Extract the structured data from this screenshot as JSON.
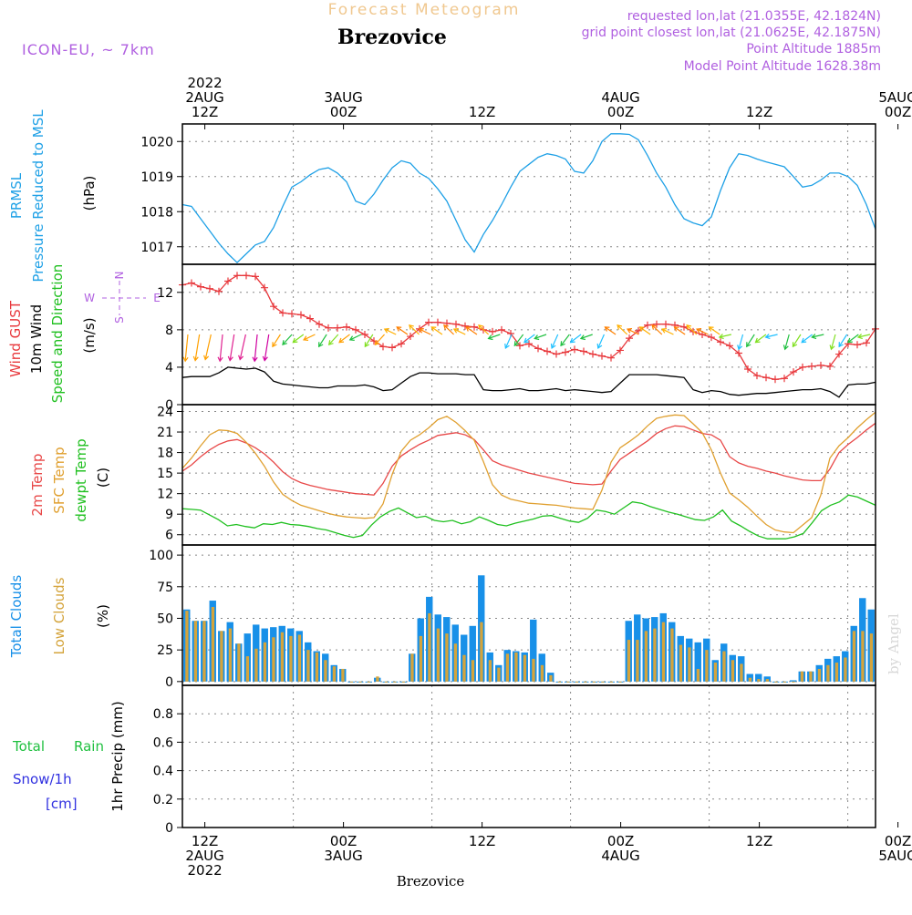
{
  "header": {
    "super_title": "Forecast Meteogram",
    "location": "Brezovice",
    "model": "ICON-EU, ~ 7km",
    "requested": "requested lon,lat (21.0355E, 42.1824N)",
    "grid_point": "grid point closest lon,lat (21.0625E, 42.1875N)",
    "point_altitude": "Point Altitude 1885m",
    "model_altitude": "Model Point Altitude 1628.38m",
    "footer_location": "Brezovice",
    "watermark": "by Angel"
  },
  "colors": {
    "pressure": "#1ea0e6",
    "gust": "#e8383c",
    "wind": "#000000",
    "t2m": "#e84848",
    "sfc": "#e0a030",
    "dewpt": "#20c020",
    "total_cloud": "#1890e8",
    "low_cloud": "#d4a43c",
    "rain": "#20c040",
    "snow": "#3030e0",
    "purple": "#b060e0",
    "super_title": "#f0c890"
  },
  "time_axis": {
    "top_labels": [
      {
        "t": -0.04,
        "lines": [
          "2022",
          "2AUG",
          "12Z"
        ]
      },
      {
        "t": 0.16,
        "lines": [
          "3AUG",
          "00Z"
        ]
      },
      {
        "t": 0.36,
        "lines": [
          "12Z"
        ]
      },
      {
        "t": 0.56,
        "lines": [
          "4AUG",
          "00Z"
        ]
      },
      {
        "t": 0.76,
        "lines": [
          "12Z"
        ]
      },
      {
        "t": 0.96,
        "lines": [
          "5AUG",
          "00Z"
        ]
      }
    ],
    "bottom_labels": [
      {
        "t": -0.04,
        "lines": [
          "12Z",
          "2AUG",
          "2022"
        ]
      },
      {
        "t": 0.16,
        "lines": [
          "00Z",
          "3AUG"
        ]
      },
      {
        "t": 0.36,
        "lines": [
          "12Z"
        ]
      },
      {
        "t": 0.56,
        "lines": [
          "00Z",
          "4AUG"
        ]
      },
      {
        "t": 0.76,
        "lines": [
          "12Z"
        ]
      },
      {
        "t": 0.96,
        "lines": [
          "00Z",
          "5AUG"
        ]
      }
    ],
    "vgrid_t": [
      -0.04,
      0.16,
      0.36,
      0.56,
      0.76,
      0.96
    ]
  },
  "chart_data": [
    {
      "type": "line",
      "panel": "pressure",
      "ylabels": [
        "PRMSL",
        "Pressure Reduced to MSL"
      ],
      "unit": "(hPa)",
      "ylim": [
        1016.5,
        1020.5
      ],
      "yticks": [
        1017,
        1018,
        1019,
        1020
      ],
      "series": [
        {
          "name": "PRMSL",
          "values": [
            1018.2,
            1018.15,
            1017.8,
            1017.45,
            1017.1,
            1016.8,
            1016.55,
            1016.8,
            1017.05,
            1017.15,
            1017.55,
            1018.15,
            1018.7,
            1018.85,
            1019.05,
            1019.2,
            1019.25,
            1019.1,
            1018.85,
            1018.3,
            1018.2,
            1018.5,
            1018.9,
            1019.25,
            1019.45,
            1019.38,
            1019.1,
            1018.95,
            1018.65,
            1018.3,
            1017.75,
            1017.2,
            1016.85,
            1017.35,
            1017.75,
            1018.2,
            1018.7,
            1019.15,
            1019.35,
            1019.55,
            1019.65,
            1019.6,
            1019.5,
            1019.15,
            1019.1,
            1019.45,
            1020.0,
            1020.22,
            1020.22,
            1020.2,
            1020.05,
            1019.6,
            1019.1,
            1018.7,
            1018.2,
            1017.8,
            1017.68,
            1017.6,
            1017.85,
            1018.6,
            1019.25,
            1019.65,
            1019.6,
            1019.5,
            1019.42,
            1019.35,
            1019.28,
            1019.0,
            1018.7,
            1018.75,
            1018.9,
            1019.1,
            1019.1,
            1019.0,
            1018.75,
            1018.2,
            1017.5
          ]
        }
      ]
    },
    {
      "type": "line",
      "panel": "wind",
      "ylabels": [
        "Wind GUST",
        "10m Wind",
        "Speed and Direction"
      ],
      "unit": "(m/s)",
      "compass": {
        "n": "N",
        "s": "S",
        "e": "E",
        "w": "W"
      },
      "ylim": [
        0,
        15
      ],
      "yticks": [
        0,
        4,
        8,
        12
      ],
      "series": [
        {
          "name": "Wind GUST",
          "values": [
            12.8,
            13.0,
            12.6,
            12.4,
            12.1,
            13.2,
            13.8,
            13.8,
            13.7,
            12.5,
            10.5,
            9.8,
            9.7,
            9.6,
            9.2,
            8.6,
            8.2,
            8.2,
            8.3,
            8.0,
            7.5,
            6.8,
            6.2,
            6.1,
            6.5,
            7.3,
            8.1,
            8.8,
            8.8,
            8.7,
            8.6,
            8.4,
            8.3,
            8.0,
            7.8,
            8.0,
            7.6,
            6.3,
            6.5,
            6.0,
            5.7,
            5.4,
            5.6,
            5.9,
            5.7,
            5.4,
            5.2,
            5.0,
            5.8,
            7.1,
            7.9,
            8.5,
            8.6,
            8.6,
            8.5,
            8.3,
            7.8,
            7.5,
            7.2,
            6.7,
            6.3,
            5.5,
            3.8,
            3.1,
            2.9,
            2.7,
            2.8,
            3.5,
            4.0,
            4.1,
            4.2,
            4.1,
            5.4,
            6.5,
            6.4,
            6.6,
            8.1
          ]
        },
        {
          "name": "10m Wind",
          "values": [
            2.9,
            3.0,
            3.0,
            3.0,
            3.4,
            4.0,
            3.9,
            3.8,
            3.9,
            3.5,
            2.5,
            2.2,
            2.1,
            2.0,
            1.9,
            1.8,
            1.8,
            2.0,
            2.0,
            2.0,
            2.1,
            1.9,
            1.5,
            1.6,
            2.3,
            3.0,
            3.4,
            3.4,
            3.3,
            3.3,
            3.3,
            3.2,
            3.2,
            1.6,
            1.5,
            1.5,
            1.6,
            1.7,
            1.5,
            1.5,
            1.6,
            1.7,
            1.5,
            1.6,
            1.5,
            1.4,
            1.3,
            1.4,
            2.3,
            3.2,
            3.2,
            3.2,
            3.2,
            3.1,
            3.0,
            2.9,
            1.6,
            1.3,
            1.5,
            1.4,
            1.1,
            1.0,
            1.1,
            1.2,
            1.2,
            1.3,
            1.4,
            1.5,
            1.6,
            1.6,
            1.7,
            1.4,
            0.8,
            2.1,
            2.2,
            2.2,
            2.4
          ]
        }
      ],
      "arrow_count": 60
    },
    {
      "type": "line",
      "panel": "temperature",
      "ylabels": [
        "2m Temp",
        "SFC Temp",
        "dewpt Temp"
      ],
      "unit": "(C)",
      "ylim": [
        4.5,
        25
      ],
      "yticks": [
        6,
        9,
        12,
        15,
        18,
        21,
        24
      ],
      "series": [
        {
          "name": "2m Temp",
          "values": [
            15.3,
            16.2,
            17.4,
            18.4,
            19.2,
            19.7,
            19.9,
            19.4,
            18.7,
            17.8,
            16.6,
            15.2,
            14.2,
            13.6,
            13.2,
            12.9,
            12.6,
            12.4,
            12.2,
            12.0,
            11.9,
            11.8,
            13.5,
            16.0,
            17.5,
            18.4,
            19.2,
            19.8,
            20.5,
            20.7,
            20.9,
            20.6,
            19.9,
            18.4,
            16.8,
            16.2,
            15.8,
            15.4,
            15.0,
            14.7,
            14.4,
            14.1,
            13.8,
            13.5,
            13.4,
            13.3,
            13.4,
            15.3,
            17.0,
            17.9,
            18.8,
            19.7,
            20.8,
            21.5,
            21.9,
            21.8,
            21.3,
            20.8,
            20.6,
            19.8,
            17.4,
            16.5,
            16.0,
            15.7,
            15.3,
            15.0,
            14.6,
            14.3,
            14.0,
            13.9,
            13.9,
            15.6,
            18.0,
            19.2,
            20.2,
            21.3,
            22.3
          ]
        },
        {
          "name": "SFC Temp",
          "values": [
            15.7,
            17.2,
            19.0,
            20.6,
            21.3,
            21.2,
            20.8,
            19.5,
            17.9,
            16.0,
            13.7,
            11.9,
            11.0,
            10.3,
            9.9,
            9.5,
            9.1,
            8.8,
            8.6,
            8.5,
            8.4,
            8.5,
            10.5,
            14.8,
            18.2,
            19.8,
            20.6,
            21.6,
            22.8,
            23.3,
            22.4,
            21.2,
            19.8,
            16.7,
            13.3,
            11.8,
            11.2,
            10.9,
            10.6,
            10.5,
            10.4,
            10.3,
            10.1,
            9.9,
            9.8,
            9.7,
            12.5,
            16.6,
            18.7,
            19.6,
            20.6,
            21.9,
            23.0,
            23.3,
            23.5,
            23.4,
            22.2,
            20.9,
            18.4,
            15.0,
            12.1,
            11.1,
            10.0,
            8.7,
            7.5,
            6.7,
            6.4,
            6.3,
            7.4,
            8.5,
            11.8,
            17.2,
            19.0,
            20.2,
            21.6,
            22.8,
            23.9
          ]
        },
        {
          "name": "dewpt Temp",
          "values": [
            9.8,
            9.7,
            9.6,
            8.9,
            8.2,
            7.3,
            7.5,
            7.2,
            7.0,
            7.6,
            7.5,
            7.8,
            7.5,
            7.4,
            7.2,
            6.9,
            6.7,
            6.3,
            5.9,
            5.6,
            5.9,
            7.4,
            8.6,
            9.4,
            9.9,
            9.2,
            8.5,
            8.7,
            8.1,
            7.9,
            8.1,
            7.6,
            7.9,
            8.6,
            8.1,
            7.5,
            7.3,
            7.7,
            8.0,
            8.3,
            8.7,
            8.8,
            8.4,
            8.0,
            7.8,
            8.4,
            9.6,
            9.4,
            9.0,
            9.9,
            10.8,
            10.6,
            10.1,
            9.7,
            9.3,
            9.0,
            8.6,
            8.2,
            8.1,
            8.6,
            9.6,
            8.0,
            7.3,
            6.5,
            5.8,
            5.4,
            5.4,
            5.4,
            5.7,
            6.2,
            7.8,
            9.5,
            10.3,
            10.8,
            11.8,
            11.5,
            10.9,
            10.3
          ]
        }
      ]
    },
    {
      "type": "bar",
      "panel": "clouds",
      "ylabels": [
        "Total Clouds",
        "Low Clouds"
      ],
      "unit": "(%)",
      "ylim": [
        -3,
        108
      ],
      "yticks": [
        0,
        25,
        50,
        75,
        100
      ],
      "series": [
        {
          "name": "Total Clouds",
          "values": [
            57,
            48,
            48,
            64,
            40,
            47,
            30,
            38,
            45,
            42,
            43,
            44,
            42,
            40,
            31,
            24,
            22,
            13,
            10,
            0,
            0,
            0,
            3,
            0,
            0,
            0,
            22,
            50,
            67,
            53,
            51,
            45,
            37,
            44,
            84,
            23,
            13,
            25,
            24,
            23,
            49,
            22,
            7,
            0,
            0,
            0,
            0,
            0,
            0,
            0,
            0,
            48,
            53,
            50,
            51,
            54,
            47,
            36,
            34,
            31,
            34,
            17,
            30,
            21,
            20,
            6,
            6,
            4,
            0,
            0,
            1,
            8,
            8,
            13,
            18,
            20,
            24,
            44,
            66,
            57
          ]
        },
        {
          "name": "Low Clouds",
          "values": [
            56,
            48,
            48,
            59,
            40,
            42,
            30,
            20,
            26,
            31,
            35,
            39,
            36,
            37,
            25,
            23,
            17,
            12,
            10,
            0,
            0,
            0,
            4,
            0,
            0,
            0,
            22,
            36,
            54,
            42,
            38,
            30,
            21,
            17,
            47,
            17,
            11,
            22,
            23,
            21,
            18,
            13,
            5,
            0,
            0,
            0,
            0,
            0,
            0,
            0,
            0,
            33,
            33,
            40,
            42,
            47,
            42,
            29,
            27,
            10,
            25,
            15,
            24,
            17,
            14,
            3,
            2,
            2,
            0,
            0,
            0,
            8,
            8,
            10,
            13,
            15,
            19,
            40,
            40,
            38
          ]
        }
      ]
    },
    {
      "type": "bar",
      "panel": "precip",
      "ylabels": [
        "Total",
        "Rain",
        "Snow/1h",
        "[cm]",
        "1hr Precip (mm)"
      ],
      "ylim": [
        0,
        1
      ],
      "yticks": [
        0,
        0.2,
        0.4,
        0.6,
        0.8
      ],
      "series": [
        {
          "name": "1hr Precip",
          "values": []
        }
      ]
    }
  ]
}
